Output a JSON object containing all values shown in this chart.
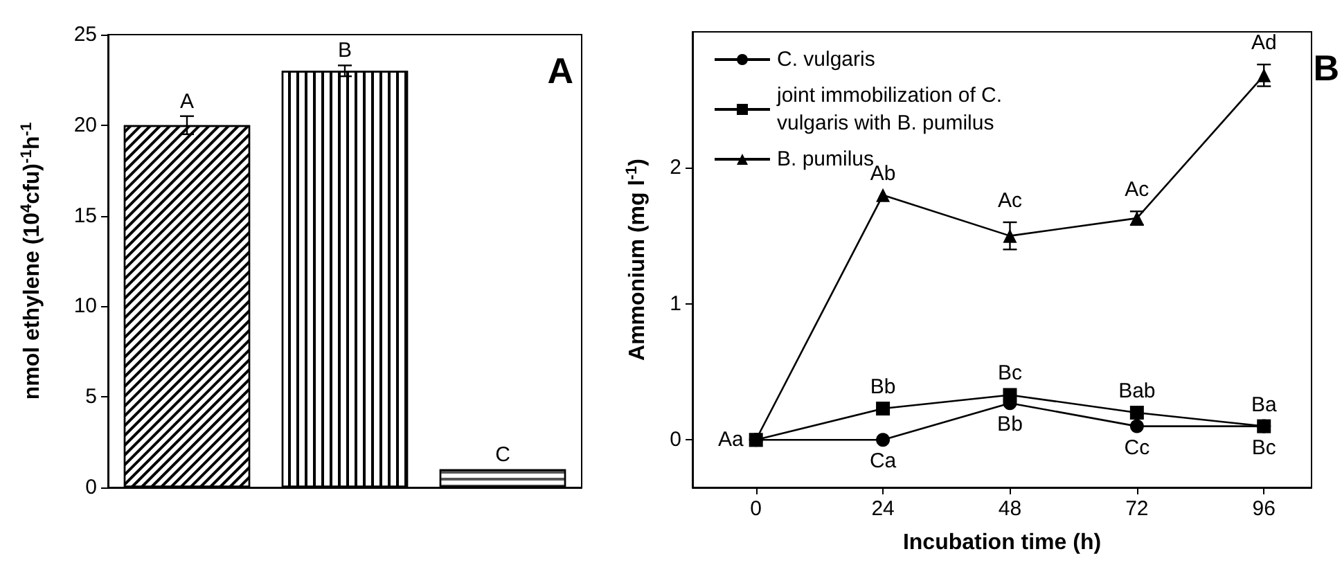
{
  "chart_data": [
    {
      "type": "bar",
      "title": "A",
      "ylabel": "nmol ethylene (10$^{4}$cfu)$^{-1}$h$^{-1}$",
      "categories": [
        null,
        null,
        null
      ],
      "values": [
        20,
        23,
        1
      ],
      "errors": [
        0.5,
        0.3,
        null
      ],
      "colors": [
        "#ffffff",
        "#ffffff",
        "#ffffff"
      ],
      "ylim": [
        0,
        25
      ],
      "yticks": [
        0,
        5,
        10,
        15,
        20,
        25
      ],
      "grid": false,
      "annotations": [
        "A",
        "B",
        "C"
      ]
    },
    {
      "type": "line",
      "title": "B",
      "xlabel": "Incubation time (h)",
      "ylabel": "Ammonium (mg l$^{-1}$)",
      "x": [
        0,
        24,
        48,
        72,
        96
      ],
      "series": [
        {
          "name": "C. vulgaris",
          "color": "#000000",
          "marker": "circle",
          "values": [
            0,
            0,
            0.27,
            0.1,
            0.1
          ]
        },
        {
          "name": "joint immobilization of C. vulgaris with B. pumilus",
          "color": "#000000",
          "marker": "square",
          "values": [
            0,
            0.23,
            0.33,
            0.2,
            0.1
          ]
        },
        {
          "name": "B. pumilus",
          "color": "#000000",
          "marker": "triangle",
          "values": [
            0,
            1.8,
            1.5,
            1.63,
            2.68
          ],
          "errors": [
            null,
            null,
            0.1,
            0.05,
            0.08
          ]
        }
      ],
      "xlim": [
        -12,
        105
      ],
      "xticks": [
        0,
        24,
        48,
        72,
        96
      ],
      "ylim": [
        -0.35,
        3
      ],
      "yticks": [
        0,
        1,
        2
      ],
      "grid": false,
      "legend": "top left",
      "line_style": "solid",
      "annotations": [
        {
          "text": "Aa",
          "x": 0,
          "y": 0
        },
        {
          "text": "Ca",
          "x": 24,
          "y": 0
        },
        {
          "text": "Bb",
          "x": 24,
          "y": 0.23
        },
        {
          "text": "Ab",
          "x": 24,
          "y": 1.8
        },
        {
          "text": "Bc",
          "x": 48,
          "y": 0.33
        },
        {
          "text": "Bb",
          "x": 48,
          "y": 0.27
        },
        {
          "text": "Ac",
          "x": 48,
          "y": 1.5
        },
        {
          "text": "Bab",
          "x": 72,
          "y": 0.2
        },
        {
          "text": "Cc",
          "x": 72,
          "y": 0.1
        },
        {
          "text": "Ac",
          "x": 72,
          "y": 1.63
        },
        {
          "text": "Ba",
          "x": 96,
          "y": 0.1
        },
        {
          "text": "Bc",
          "x": 96,
          "y": 0.1
        },
        {
          "text": "Ad",
          "x": 96,
          "y": 2.68
        }
      ]
    }
  ]
}
